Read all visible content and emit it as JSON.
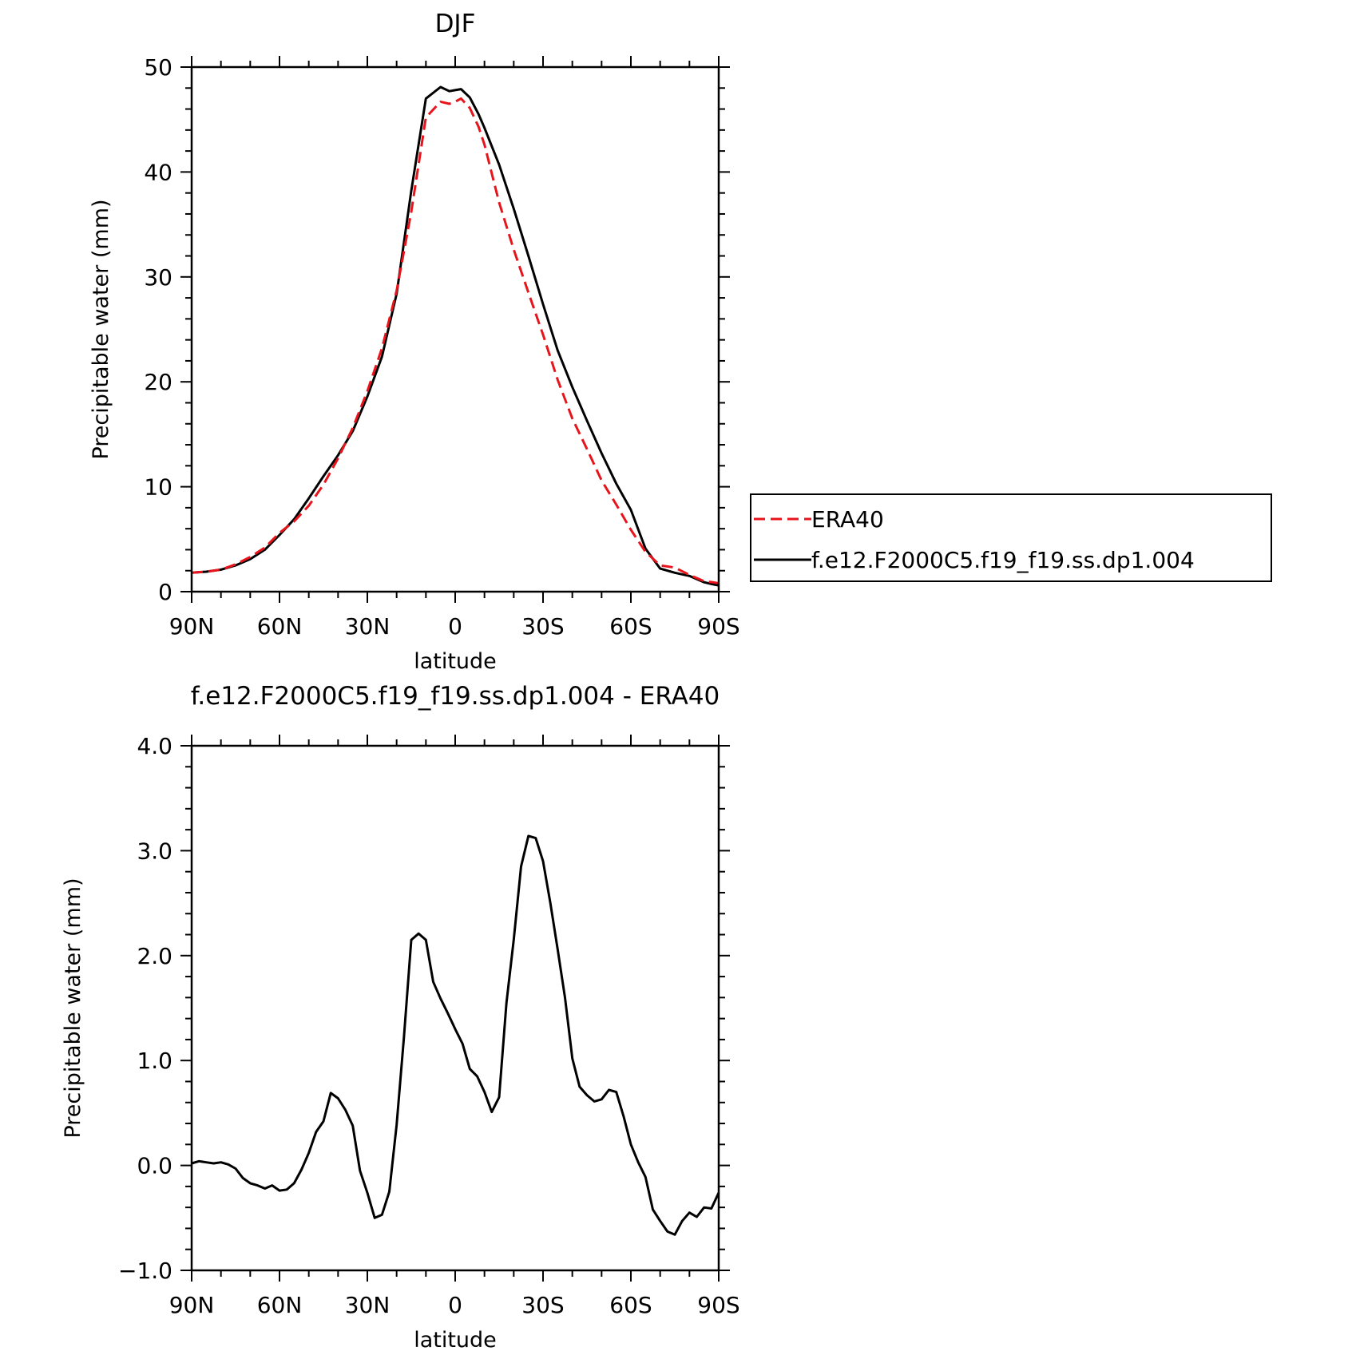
{
  "chart_data": [
    {
      "type": "line",
      "title": "DJF",
      "xlabel": "latitude",
      "ylabel": "Precipitable water (mm)",
      "xlim": [
        90,
        -90
      ],
      "ylim": [
        0,
        50
      ],
      "xticks": [
        {
          "value": 90,
          "label": "90N"
        },
        {
          "value": 60,
          "label": "60N"
        },
        {
          "value": 30,
          "label": "30N"
        },
        {
          "value": 0,
          "label": "0"
        },
        {
          "value": -30,
          "label": "30S"
        },
        {
          "value": -60,
          "label": "60S"
        },
        {
          "value": -90,
          "label": "90S"
        }
      ],
      "yticks": [
        {
          "value": 0,
          "label": "0"
        },
        {
          "value": 10,
          "label": "10"
        },
        {
          "value": 20,
          "label": "20"
        },
        {
          "value": 30,
          "label": "30"
        },
        {
          "value": 40,
          "label": "40"
        },
        {
          "value": 50,
          "label": "50"
        }
      ],
      "legend": "right",
      "series": [
        {
          "name": "ERA40",
          "color": "#e8141c",
          "dash": "dashed",
          "x": [
            90,
            85,
            80,
            75,
            70,
            65,
            60,
            55,
            50,
            45,
            40,
            35,
            30,
            25,
            20,
            15,
            10,
            5,
            2,
            0,
            -2,
            -5,
            -8,
            -10,
            -15,
            -20,
            -25,
            -30,
            -35,
            -40,
            -45,
            -50,
            -55,
            -60,
            -65,
            -70,
            -75,
            -80,
            -85,
            -88,
            -90
          ],
          "y": [
            1.8,
            1.9,
            2.1,
            2.6,
            3.3,
            4.2,
            5.6,
            6.7,
            8.2,
            10.2,
            12.7,
            15.6,
            19.1,
            23.2,
            28.7,
            36.2,
            45.2,
            46.7,
            46.5,
            46.7,
            47.0,
            46.1,
            44.3,
            42.6,
            37.1,
            32.6,
            28.5,
            24.5,
            20.2,
            16.5,
            13.6,
            10.6,
            8.3,
            5.9,
            3.8,
            2.5,
            2.3,
            1.6,
            1.0,
            0.9,
            0.8
          ]
        },
        {
          "name": "f.e12.F2000C5.f19_f19.ss.dp1.004",
          "color": "#000000",
          "dash": "solid",
          "x": [
            90,
            85,
            80,
            75,
            70,
            65,
            60,
            55,
            50,
            45,
            40,
            35,
            30,
            25,
            20,
            15,
            10,
            5,
            2,
            0,
            -2,
            -5,
            -8,
            -10,
            -15,
            -20,
            -25,
            -30,
            -35,
            -40,
            -45,
            -50,
            -55,
            -60,
            -65,
            -70,
            -75,
            -80,
            -85,
            -88,
            -90
          ],
          "y": [
            1.8,
            1.9,
            2.1,
            2.5,
            3.1,
            4.0,
            5.4,
            6.9,
            8.9,
            11.0,
            13.0,
            15.3,
            18.6,
            22.4,
            28.4,
            38.2,
            47.0,
            48.1,
            47.7,
            47.8,
            47.9,
            47.1,
            45.5,
            44.2,
            40.7,
            36.5,
            32.0,
            27.4,
            23.0,
            19.5,
            16.3,
            13.2,
            10.3,
            7.8,
            4.1,
            2.2,
            1.8,
            1.5,
            0.9,
            0.7,
            0.6
          ]
        }
      ]
    },
    {
      "type": "line",
      "title": "f.e12.F2000C5.f19_f19.ss.dp1.004 - ERA40",
      "xlabel": "latitude",
      "ylabel": "Precipitable water (mm)",
      "xlim": [
        90,
        -90
      ],
      "ylim": [
        -1.0,
        4.0
      ],
      "xticks": [
        {
          "value": 90,
          "label": "90N"
        },
        {
          "value": 60,
          "label": "60N"
        },
        {
          "value": 30,
          "label": "30N"
        },
        {
          "value": 0,
          "label": "0"
        },
        {
          "value": -30,
          "label": "30S"
        },
        {
          "value": -60,
          "label": "60S"
        },
        {
          "value": -90,
          "label": "90S"
        }
      ],
      "yticks": [
        {
          "value": -1.0,
          "label": "−1.0"
        },
        {
          "value": 0.0,
          "label": "0.0"
        },
        {
          "value": 1.0,
          "label": "1.0"
        },
        {
          "value": 2.0,
          "label": "2.0"
        },
        {
          "value": 3.0,
          "label": "3.0"
        },
        {
          "value": 4.0,
          "label": "4.0"
        }
      ],
      "series": [
        {
          "color": "#000000",
          "dash": "solid",
          "x": [
            90,
            87.5,
            85,
            82.5,
            80,
            77.5,
            75,
            72.5,
            70,
            67.5,
            65,
            62.5,
            60,
            57.5,
            55,
            52.5,
            50,
            47.5,
            45,
            42.5,
            40,
            37.5,
            35,
            32.5,
            30,
            27.5,
            25,
            22.5,
            20,
            17.5,
            15,
            12.5,
            10,
            7.5,
            5,
            2.5,
            0,
            -2.5,
            -5,
            -7.5,
            -10,
            -12.5,
            -15,
            -17.5,
            -20,
            -22.5,
            -25,
            -27.5,
            -30,
            -32.5,
            -35,
            -37.5,
            -40,
            -42.5,
            -45,
            -47.5,
            -50,
            -52.5,
            -55,
            -57.5,
            -60,
            -62.5,
            -65,
            -67.5,
            -70,
            -72.5,
            -75,
            -77.5,
            -80,
            -82.5,
            -85,
            -87.5,
            -90
          ],
          "y": [
            0.02,
            0.04,
            0.03,
            0.02,
            0.03,
            0.01,
            -0.03,
            -0.12,
            -0.17,
            -0.19,
            -0.22,
            -0.19,
            -0.24,
            -0.23,
            -0.17,
            -0.04,
            0.12,
            0.32,
            0.42,
            0.69,
            0.64,
            0.53,
            0.38,
            -0.05,
            -0.26,
            -0.5,
            -0.47,
            -0.25,
            0.39,
            1.22,
            2.15,
            2.21,
            2.15,
            1.75,
            1.59,
            1.45,
            1.3,
            1.16,
            0.92,
            0.85,
            0.7,
            0.51,
            0.65,
            1.55,
            2.15,
            2.85,
            3.14,
            3.12,
            2.9,
            2.5,
            2.06,
            1.6,
            1.02,
            0.75,
            0.67,
            0.61,
            0.63,
            0.72,
            0.7,
            0.47,
            0.2,
            0.03,
            -0.11,
            -0.42,
            -0.53,
            -0.63,
            -0.66,
            -0.53,
            -0.45,
            -0.49,
            -0.4,
            -0.41,
            -0.26
          ]
        }
      ]
    }
  ]
}
